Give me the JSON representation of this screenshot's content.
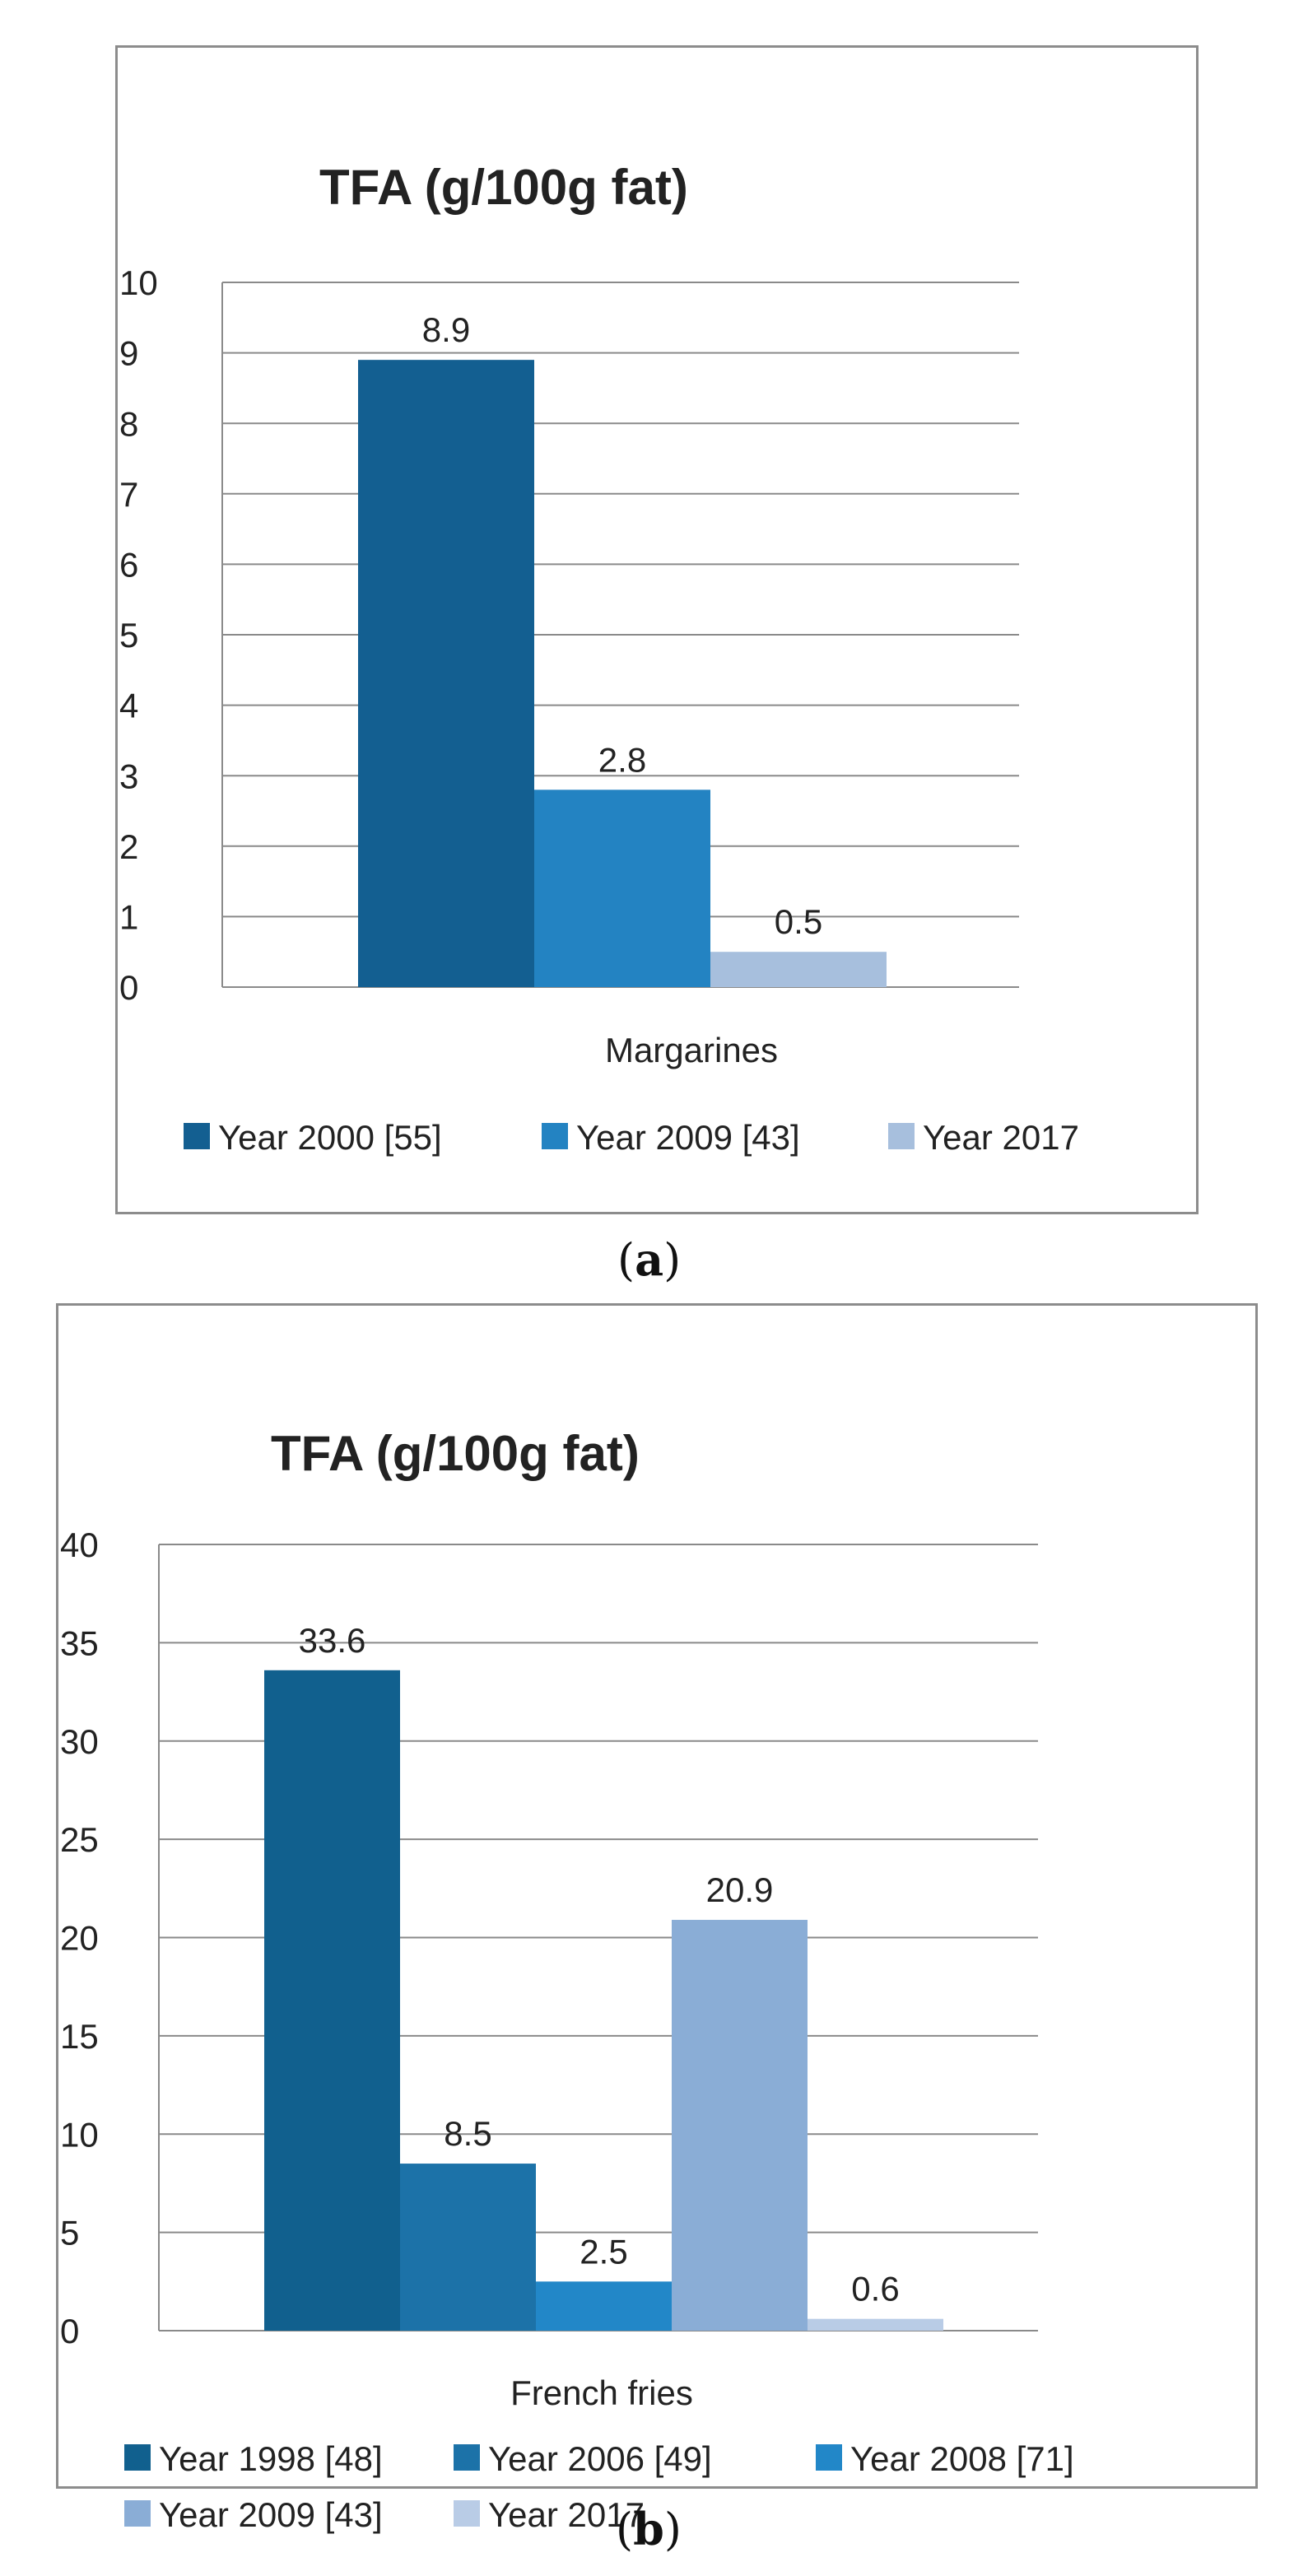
{
  "captions": {
    "a_open": "(",
    "a_label": "a",
    "a_close": ")",
    "b_open": "(",
    "b_label": "b",
    "b_close": ")"
  },
  "chart_data": [
    {
      "type": "bar",
      "title": "TFA (g/100g fat)",
      "categories": [
        "Margarines"
      ],
      "series": [
        {
          "name": "Year 2000 [55]",
          "values": [
            8.9
          ],
          "label": "8.9",
          "color": "#135f91"
        },
        {
          "name": "Year 2009 [43]",
          "values": [
            2.8
          ],
          "label": "2.8",
          "color": "#2383c2"
        },
        {
          "name": " Year 2017",
          "values": [
            0.5
          ],
          "label": "0.5",
          "color": "#a7bfdd"
        }
      ],
      "ylim": [
        0,
        10
      ],
      "yticks": [
        "0",
        "1",
        "2",
        "3",
        "4",
        "5",
        "6",
        "7",
        "8",
        "9",
        "10"
      ],
      "xlabel": "",
      "ylabel": "",
      "grid": true,
      "legend": "bottom"
    },
    {
      "type": "bar",
      "title": "TFA (g/100g fat)",
      "categories": [
        "French fries"
      ],
      "series": [
        {
          "name": "Year 1998 [48]",
          "values": [
            33.6
          ],
          "label": "33.6",
          "color": "#11608e"
        },
        {
          "name": "Year 2006 [49]",
          "values": [
            8.5
          ],
          "label": "8.5",
          "color": "#1c72a8"
        },
        {
          "name": "Year 2008 [71]",
          "values": [
            2.5
          ],
          "label": "2.5",
          "color": "#2287c8"
        },
        {
          "name": "Year  2009 [43]",
          "values": [
            20.9
          ],
          "label": "20.9",
          "color": "#8aadd6"
        },
        {
          "name": "Year 2017",
          "values": [
            0.6
          ],
          "label": "0.6",
          "color": "#b9cce6"
        }
      ],
      "ylim": [
        0,
        40
      ],
      "yticks": [
        "0",
        "5",
        "10",
        "15",
        "20",
        "25",
        "30",
        "35",
        "40"
      ],
      "xlabel": "",
      "ylabel": "",
      "grid": true,
      "legend": "bottom"
    }
  ]
}
